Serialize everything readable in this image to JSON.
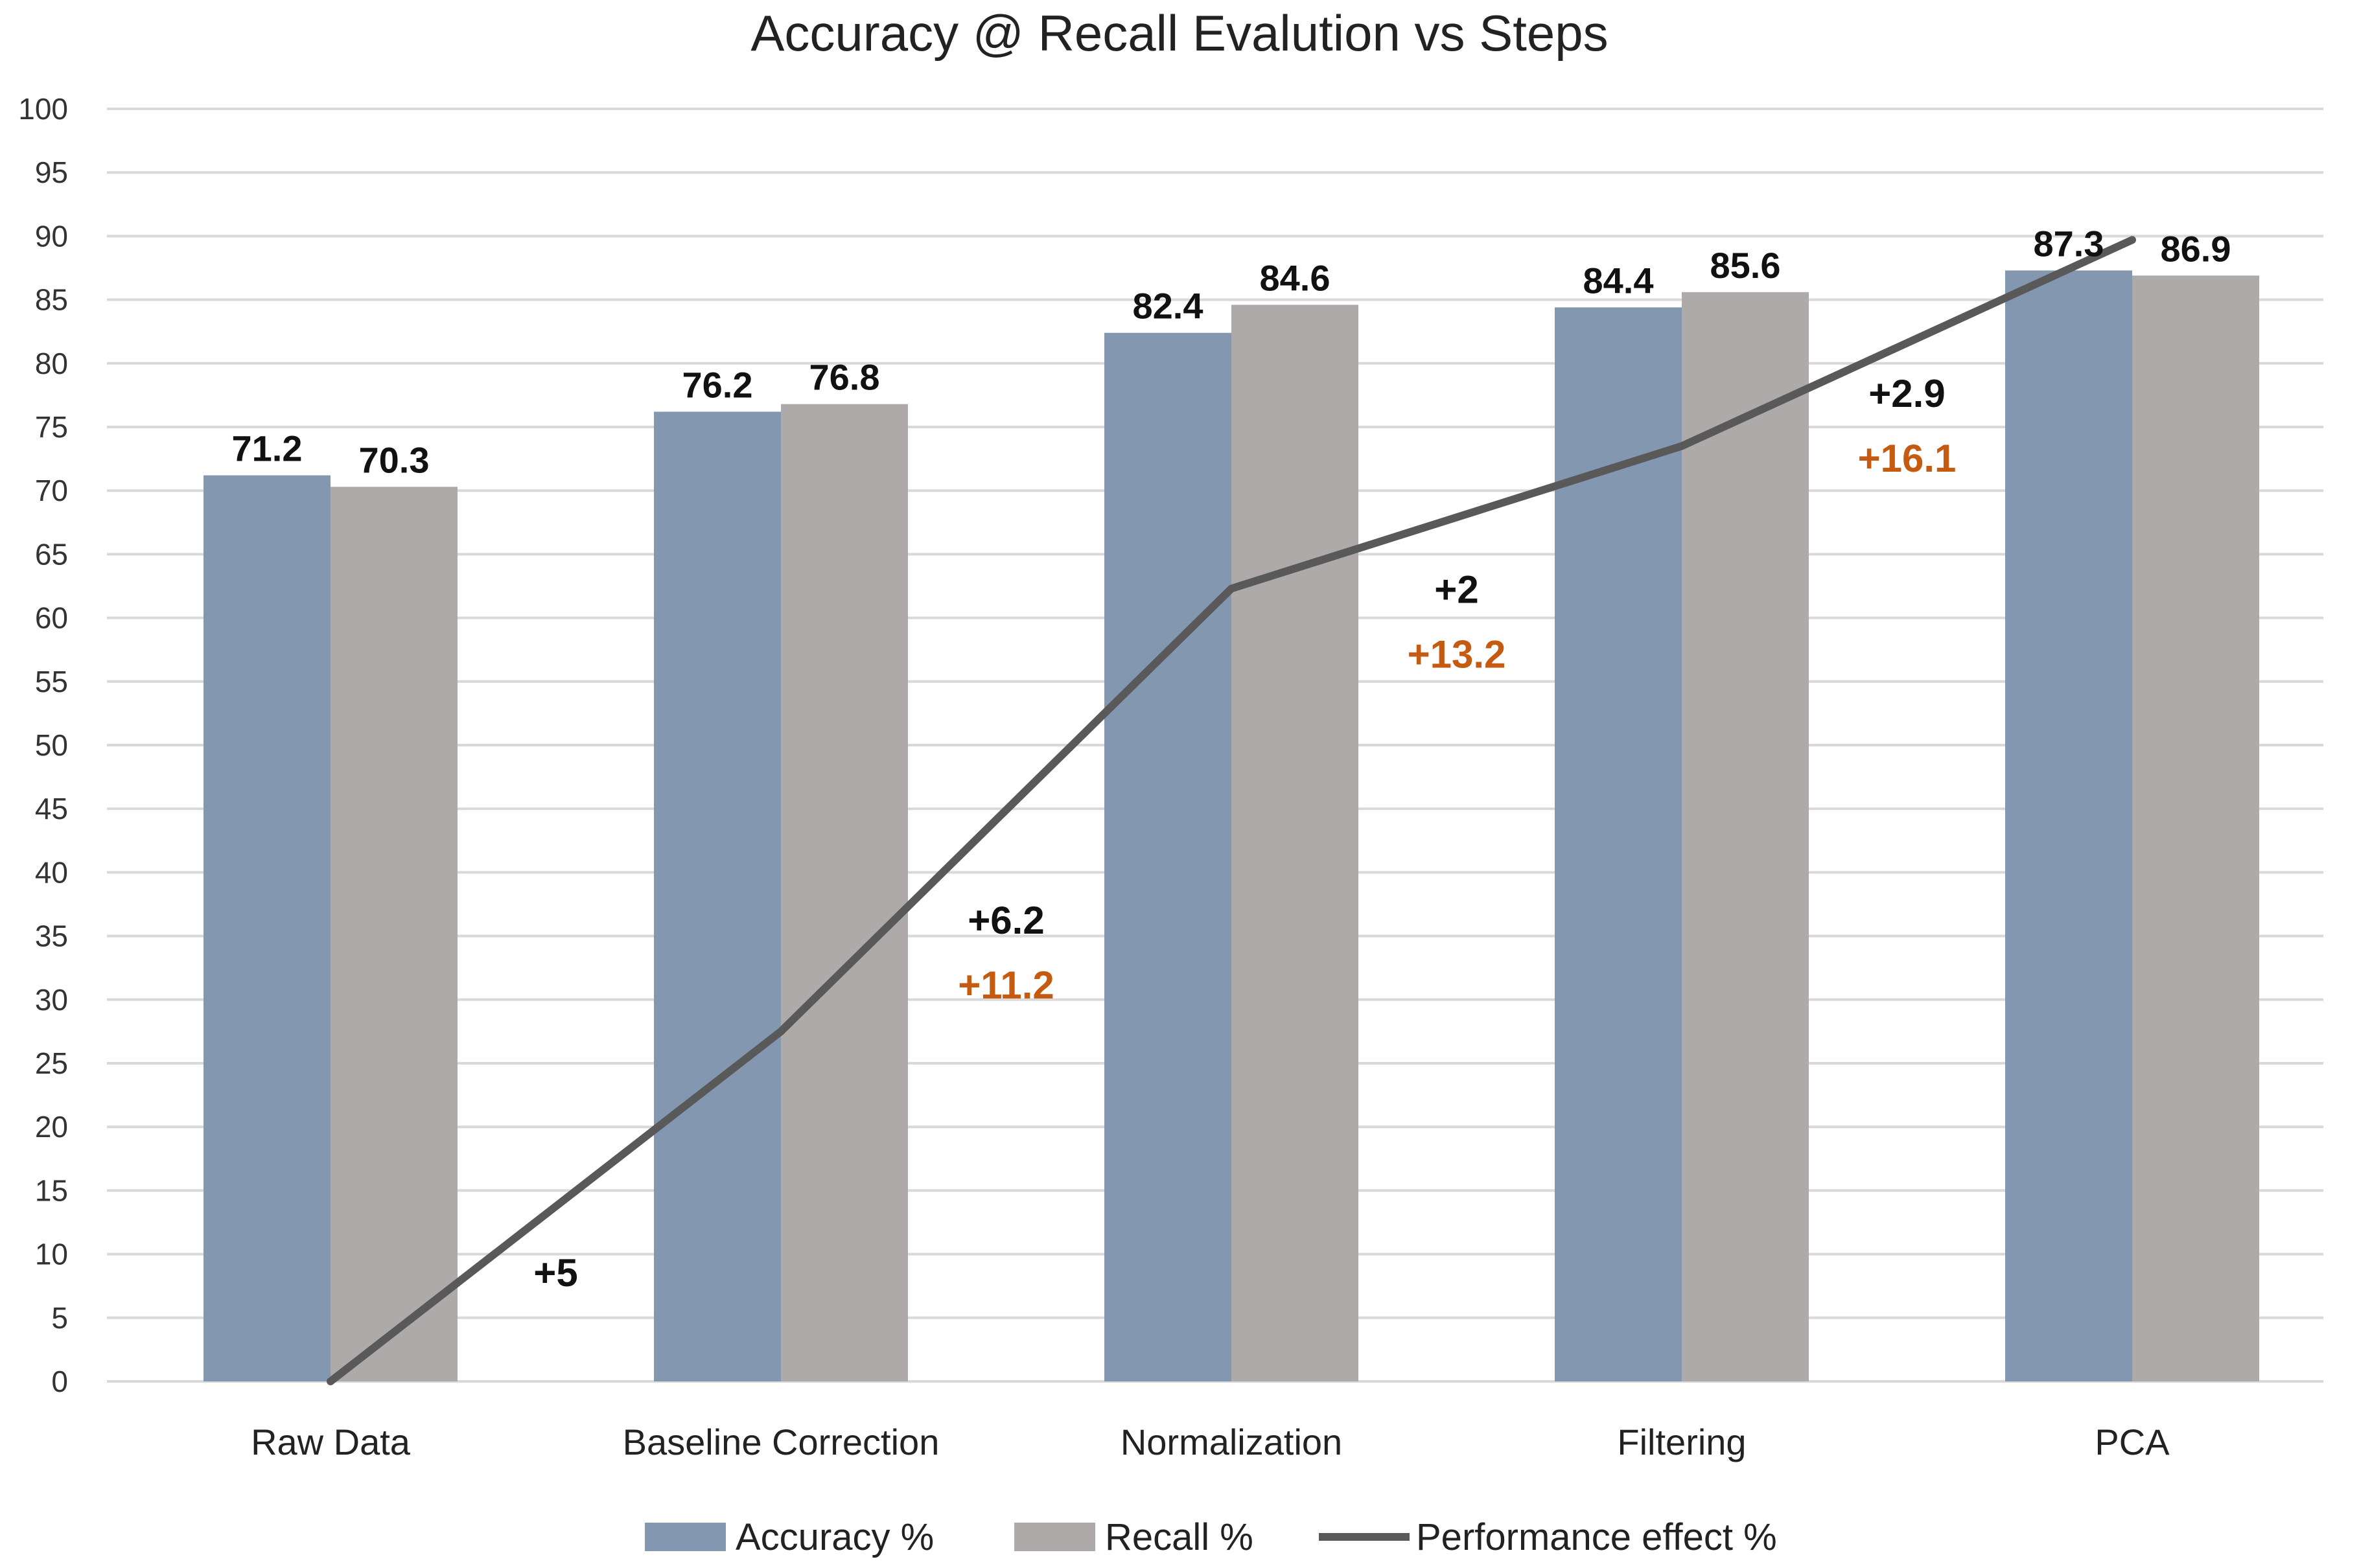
{
  "chart_data": {
    "type": "bar",
    "title": "Accuracy @ Recall Evalution vs Steps",
    "categories": [
      "Raw Data",
      "Baseline Correction",
      "Normalization",
      "Filtering",
      "PCA"
    ],
    "ylim": [
      0,
      100
    ],
    "ytick_step": 5,
    "yticks": [
      "0",
      "5",
      "10",
      "15",
      "20",
      "25",
      "30",
      "35",
      "40",
      "45",
      "50",
      "55",
      "60",
      "65",
      "70",
      "75",
      "80",
      "85",
      "90",
      "95",
      "100"
    ],
    "grid": true,
    "legend_position": "bottom",
    "series": [
      {
        "name": "Accuracy %",
        "kind": "bar",
        "color": "#8497b0",
        "values": [
          71.2,
          76.2,
          82.4,
          84.4,
          87.3
        ],
        "labels": [
          "71.2",
          "76.2",
          "82.4",
          "84.4",
          "87.3"
        ]
      },
      {
        "name": "Recall %",
        "kind": "bar",
        "color": "#aeaaaa",
        "values": [
          70.3,
          76.8,
          84.6,
          85.6,
          86.9
        ],
        "labels": [
          "70.3",
          "76.8",
          "84.6",
          "85.6",
          "86.9"
        ]
      },
      {
        "name": "Performance effect %",
        "kind": "line",
        "color": "#595959",
        "values": [
          0,
          27.5,
          62.3,
          73.5,
          89.7
        ]
      }
    ],
    "annotations": [
      {
        "text": "+5",
        "color": "#111111",
        "after_category": 0,
        "y": 8.5
      },
      {
        "text": "+6.2",
        "color": "#111111",
        "after_category": 1,
        "y": 36.2
      },
      {
        "text": "+11.2",
        "color": "#c55a11",
        "after_category": 1,
        "y": 31.1
      },
      {
        "text": "+2",
        "color": "#111111",
        "after_category": 2,
        "y": 62.2
      },
      {
        "text": "+13.2",
        "color": "#c55a11",
        "after_category": 2,
        "y": 57.1
      },
      {
        "text": "+2.9",
        "color": "#111111",
        "after_category": 3,
        "y": 77.6
      },
      {
        "text": "+16.1",
        "color": "#c55a11",
        "after_category": 3,
        "y": 72.5
      }
    ]
  }
}
